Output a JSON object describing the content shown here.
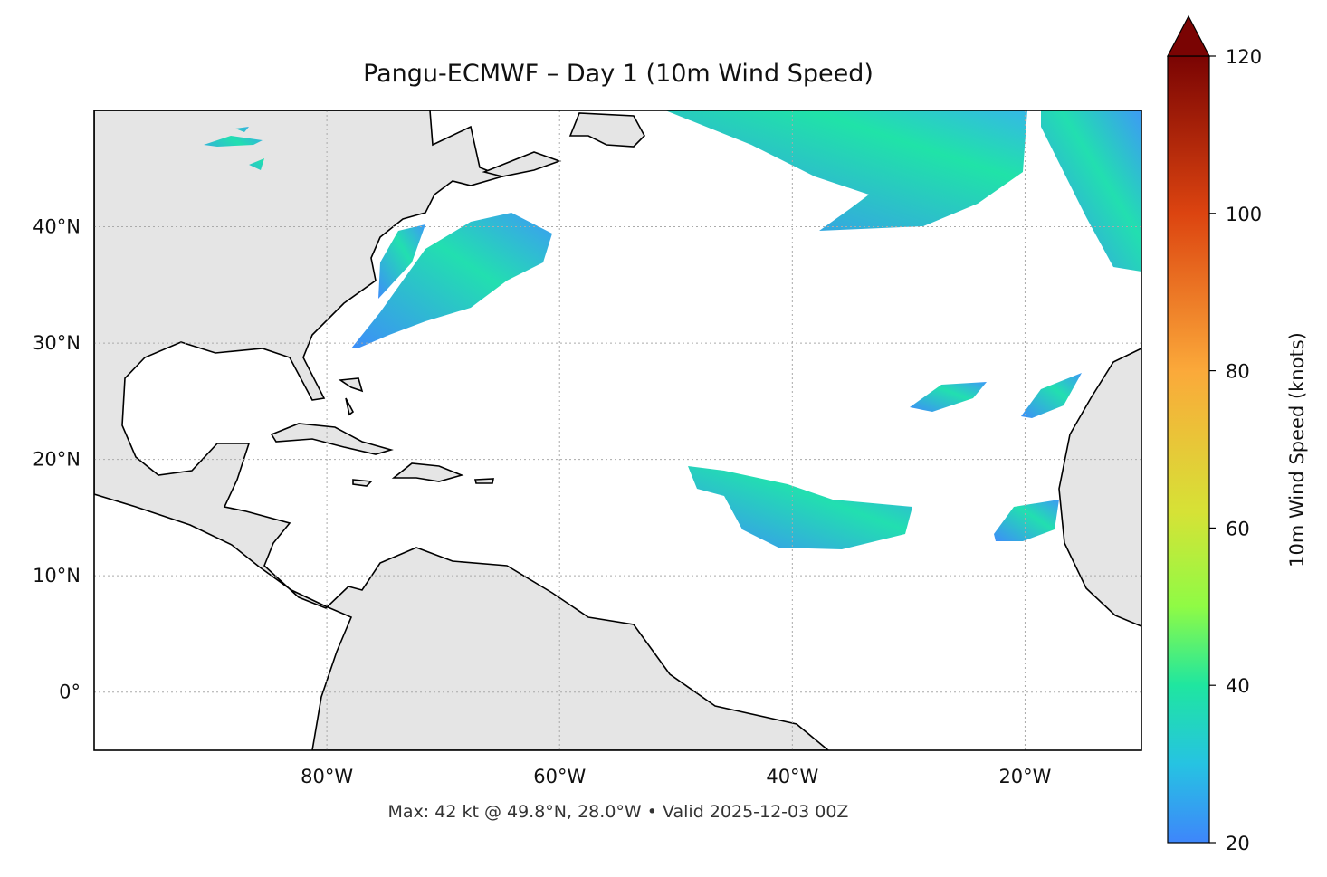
{
  "map": {
    "title": "Pangu-ECMWF – Day 1 (10m Wind Speed)",
    "footer": "Max: 42 kt @ 49.8°N, 28.0°W • Valid 2025-12-03 00Z",
    "xlim": [
      -100,
      -10
    ],
    "ylim": [
      -5,
      50
    ],
    "xticks": [
      {
        "value": -80,
        "label": "80°W"
      },
      {
        "value": -60,
        "label": "60°W"
      },
      {
        "value": -40,
        "label": "40°W"
      },
      {
        "value": -20,
        "label": "20°W"
      }
    ],
    "yticks": [
      {
        "value": 0,
        "label": "0°"
      },
      {
        "value": 10,
        "label": "10°N"
      },
      {
        "value": 20,
        "label": "20°N"
      },
      {
        "value": 30,
        "label": "30°N"
      },
      {
        "value": 40,
        "label": "40°N"
      }
    ],
    "grid": true,
    "colorbar": {
      "label": "10m Wind Speed (knots)",
      "lim": [
        20,
        120
      ],
      "ticks": [
        20,
        40,
        60,
        80,
        100,
        120
      ]
    }
  }
}
